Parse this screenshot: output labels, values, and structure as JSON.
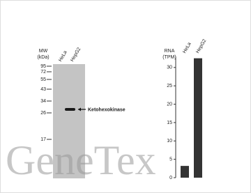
{
  "blot": {
    "mw_label": "MW",
    "mw_unit": "(kDa)",
    "lanes": [
      "HeLa",
      "HepG2"
    ],
    "markers": [
      95,
      72,
      55,
      43,
      34,
      26,
      17
    ],
    "band_label": "Ketohexokinase"
  },
  "watermark": "GeneTex",
  "chart_data": {
    "type": "bar",
    "y_label": "RNA",
    "y_unit": "(TPM)",
    "categories": [
      "HeLa",
      "HepG2"
    ],
    "values": [
      3.2,
      32.5
    ],
    "color": "#333333",
    "ylim": [
      0,
      33
    ],
    "yticks": [
      0,
      5,
      10,
      15,
      20,
      25,
      30
    ]
  }
}
